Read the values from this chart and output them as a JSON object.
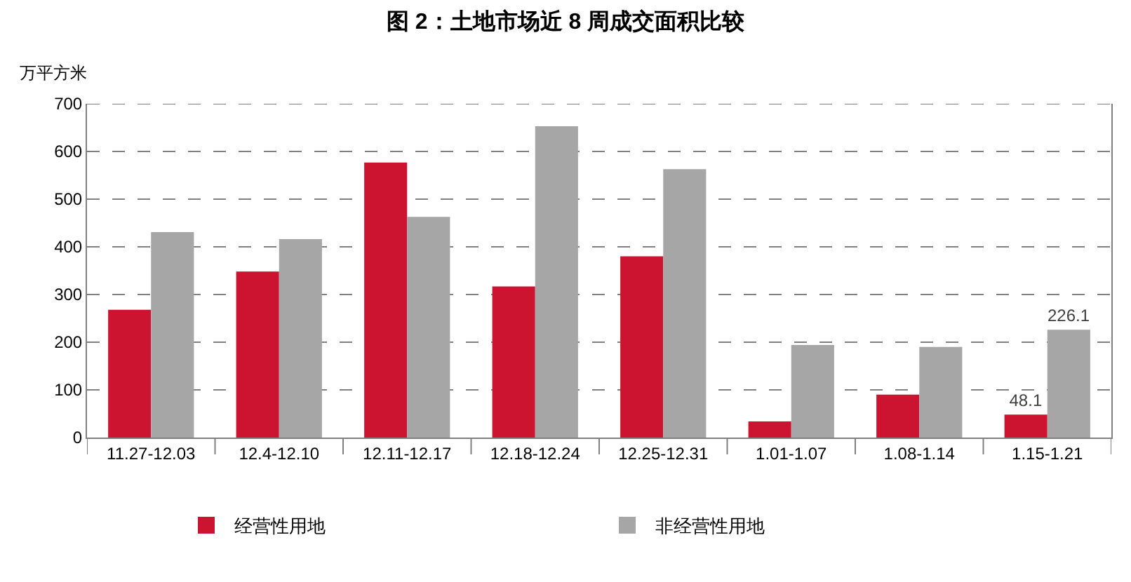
{
  "chart_data": {
    "type": "bar",
    "title": "图 2：土地市场近 8 周成交面积比较",
    "ylabel": "万平方米",
    "categories": [
      "11.27-12.03",
      "12.4-12.10",
      "12.11-12.17",
      "12.18-12.24",
      "12.25-12.31",
      "1.01-1.07",
      "1.08-1.14",
      "1.15-1.21"
    ],
    "series": [
      {
        "name": "经营性用地",
        "color": "#cc1430",
        "values": [
          268,
          348,
          577,
          317,
          380,
          34,
          90,
          48.1
        ],
        "value_labels": [
          null,
          null,
          null,
          null,
          null,
          null,
          null,
          "48.1"
        ]
      },
      {
        "name": "非经营性用地",
        "color": "#a6a6a6",
        "values": [
          431,
          416,
          463,
          653,
          563,
          194,
          190,
          226.1
        ],
        "value_labels": [
          null,
          null,
          null,
          null,
          null,
          null,
          null,
          "226.1"
        ]
      }
    ],
    "ylim": [
      0,
      700
    ],
    "yticks": [
      0,
      100,
      200,
      300,
      400,
      500,
      600,
      700
    ],
    "grid": "y",
    "legend": "bottom"
  }
}
